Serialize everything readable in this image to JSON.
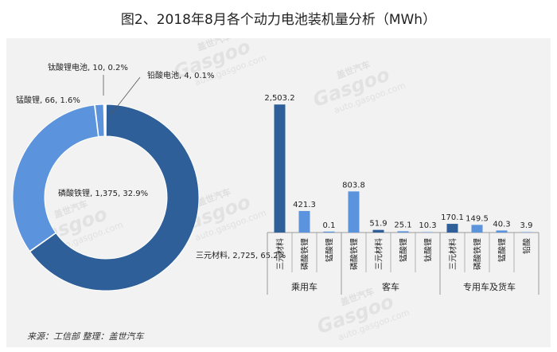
{
  "title": "图2、2018年8月各个动力电池装机量分析（MWh）",
  "source": "来源：工信部 整理：盖世汽车",
  "watermark": {
    "brand": "Gasgoo",
    "cn": "盖世汽车",
    "url": "auto.gasgoo.com"
  },
  "colors": {
    "dark": "#2e5f99",
    "light": "#5b93dc",
    "pale": "#aac6ec",
    "axis": "#999999",
    "text": "#222222"
  },
  "chart_data": [
    {
      "type": "pie",
      "variant": "donut",
      "slices": [
        {
          "label": "三元材料",
          "value": 2725,
          "value_text": "2,725",
          "percent": "65.2%",
          "color": "#2e5f99"
        },
        {
          "label": "磷酸铁锂",
          "value": 1375,
          "value_text": "1,375",
          "percent": "32.9%",
          "color": "#5b93dc"
        },
        {
          "label": "锰酸锂",
          "value": 66,
          "value_text": "66",
          "percent": "1.6%",
          "color": "#5b93dc"
        },
        {
          "label": "钛酸锂电池",
          "value": 10,
          "value_text": "10",
          "percent": "0.2%",
          "color": "#aac6ec"
        },
        {
          "label": "铅酸电池",
          "value": 4,
          "value_text": "4",
          "percent": "0.1%",
          "color": "#aac6ec"
        }
      ]
    },
    {
      "type": "bar",
      "groups": [
        {
          "name": "乘用车",
          "bars": [
            {
              "category": "三元材料",
              "value": 2503.2,
              "label": "2,503.2",
              "color": "#2e5f99"
            },
            {
              "category": "磷酸铁锂",
              "value": 421.3,
              "label": "421.3",
              "color": "#5b93dc"
            },
            {
              "category": "锰酸锂",
              "value": 0.1,
              "label": "0.1",
              "color": "#5b93dc"
            }
          ]
        },
        {
          "name": "客车",
          "bars": [
            {
              "category": "磷酸铁锂",
              "value": 803.8,
              "label": "803.8",
              "color": "#5b93dc"
            },
            {
              "category": "三元材料",
              "value": 51.9,
              "label": "51.9",
              "color": "#2e5f99"
            },
            {
              "category": "锰酸锂",
              "value": 25.1,
              "label": "25.1",
              "color": "#5b93dc"
            },
            {
              "category": "钛酸锂",
              "value": 10.3,
              "label": "10.3",
              "color": "#aac6ec"
            }
          ]
        },
        {
          "name": "专用车及货车",
          "bars": [
            {
              "category": "三元材料",
              "value": 170.1,
              "label": "170.1",
              "color": "#2e5f99"
            },
            {
              "category": "磷酸铁锂",
              "value": 149.5,
              "label": "149.5",
              "color": "#5b93dc"
            },
            {
              "category": "锰酸锂",
              "value": 40.3,
              "label": "40.3",
              "color": "#5b93dc"
            },
            {
              "category": "铅酸",
              "value": 3.9,
              "label": "3.9",
              "color": "#aac6ec"
            }
          ]
        }
      ],
      "ylim": [
        0,
        2600
      ]
    }
  ]
}
